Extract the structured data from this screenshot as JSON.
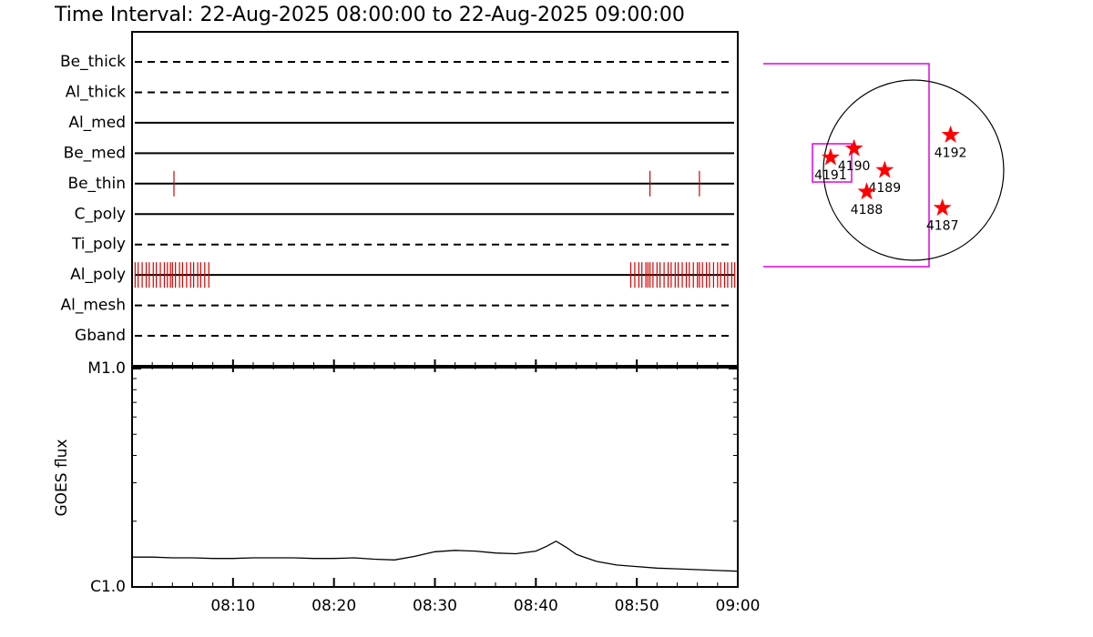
{
  "chart_data": [
    {
      "type": "timeline",
      "title": "Time Interval: 22-Aug-2025 08:00:00 to 22-Aug-2025 09:00:00",
      "xlim": [
        0,
        60
      ],
      "color": "#d40000",
      "series": [
        {
          "name": "Be_thick",
          "style": "dashed",
          "values": []
        },
        {
          "name": "Al_thick",
          "style": "dashed",
          "values": []
        },
        {
          "name": "Al_med",
          "style": "solid",
          "values": []
        },
        {
          "name": "Be_med",
          "style": "solid",
          "values": []
        },
        {
          "name": "Be_thin",
          "style": "solid",
          "values": [
            4.15,
            51.3,
            56.2
          ]
        },
        {
          "name": "C_poly",
          "style": "solid",
          "values": []
        },
        {
          "name": "Ti_poly",
          "style": "dashed",
          "values": []
        },
        {
          "name": "Al_poly",
          "style": "solid",
          "values": [
            0.3,
            0.6,
            1.0,
            1.4,
            1.7,
            2.1,
            2.4,
            2.8,
            3.2,
            3.5,
            3.8,
            4.0,
            4.3,
            4.7,
            5.0,
            5.4,
            5.8,
            6.1,
            6.5,
            6.8,
            7.2,
            7.6,
            49.4,
            49.8,
            50.2,
            50.5,
            50.9,
            51.1,
            51.3,
            51.6,
            52.0,
            52.3,
            52.7,
            53.1,
            53.4,
            53.8,
            54.1,
            54.5,
            54.9,
            55.2,
            55.6,
            56.0,
            56.2,
            56.5,
            56.9,
            57.2,
            57.6,
            58.0,
            58.3,
            58.7,
            59.0,
            59.4,
            59.7
          ]
        },
        {
          "name": "Al_mesh",
          "style": "dashed",
          "values": []
        },
        {
          "name": "Gband",
          "style": "dashed",
          "values": []
        }
      ]
    },
    {
      "type": "line",
      "ylabel": "GOES flux",
      "yscale": "log",
      "ylim": [
        1e-06,
        1e-05
      ],
      "yticks": [
        {
          "value": 1e-06,
          "label": "C1.0"
        },
        {
          "value": 1e-05,
          "label": "M1.0"
        }
      ],
      "yminor": [
        2e-06,
        3e-06,
        4e-06,
        5e-06,
        6e-06,
        7e-06,
        8e-06,
        9e-06
      ],
      "xlim": [
        0,
        60
      ],
      "xticks": [
        {
          "value": 10,
          "label": "08:10"
        },
        {
          "value": 20,
          "label": "08:20"
        },
        {
          "value": 30,
          "label": "08:30"
        },
        {
          "value": 40,
          "label": "08:40"
        },
        {
          "value": 50,
          "label": "08:50"
        },
        {
          "value": 60,
          "label": "09:00"
        }
      ],
      "xminor": [
        2,
        4,
        6,
        8,
        12,
        14,
        16,
        18,
        22,
        24,
        26,
        28,
        32,
        34,
        36,
        38,
        42,
        44,
        46,
        48,
        52,
        54,
        56,
        58
      ],
      "color": "#000000",
      "x": [
        0,
        2,
        4,
        6,
        8,
        10,
        12,
        14,
        16,
        18,
        20,
        22,
        24,
        26,
        28,
        30,
        32,
        34,
        36,
        38,
        40,
        41,
        42,
        43,
        44,
        46,
        48,
        50,
        52,
        54,
        56,
        58,
        60
      ],
      "values": [
        1.37e-06,
        1.37e-06,
        1.36e-06,
        1.36e-06,
        1.35e-06,
        1.35e-06,
        1.36e-06,
        1.36e-06,
        1.36e-06,
        1.35e-06,
        1.35e-06,
        1.36e-06,
        1.34e-06,
        1.33e-06,
        1.38e-06,
        1.45e-06,
        1.47e-06,
        1.46e-06,
        1.43e-06,
        1.42e-06,
        1.46e-06,
        1.53e-06,
        1.62e-06,
        1.52e-06,
        1.41e-06,
        1.31e-06,
        1.26e-06,
        1.24e-06,
        1.22e-06,
        1.21e-06,
        1.2e-06,
        1.19e-06,
        1.18e-06
      ]
    },
    {
      "type": "scatter",
      "xlim": [
        -1,
        1
      ],
      "ylim": [
        -1,
        1
      ],
      "color": "#ff0000",
      "labels": [
        "4192",
        "4190",
        "4191",
        "4189",
        "4188",
        "4187"
      ],
      "x": [
        0.41,
        -0.66,
        -0.92,
        -0.32,
        -0.52,
        0.32
      ],
      "y": [
        0.39,
        0.24,
        0.14,
        0.0,
        -0.24,
        -0.42
      ]
    }
  ]
}
